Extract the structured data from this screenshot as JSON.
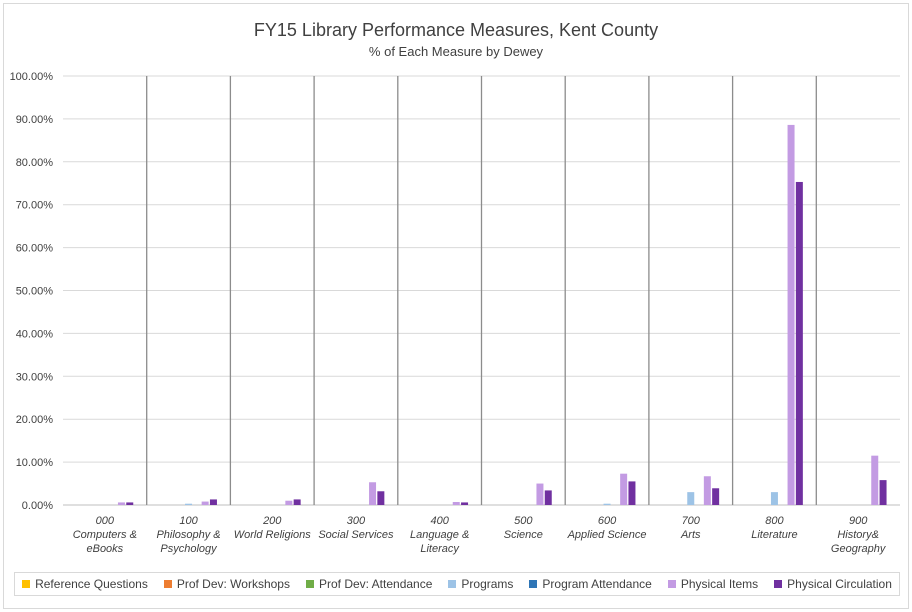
{
  "chart_data": {
    "type": "bar",
    "title": "FY15 Library Performance Measures, Kent County",
    "subtitle": "% of Each Measure by Dewey",
    "ylim": [
      0,
      100
    ],
    "yticks": [
      "0.00%",
      "10.00%",
      "20.00%",
      "30.00%",
      "40.00%",
      "50.00%",
      "60.00%",
      "70.00%",
      "80.00%",
      "90.00%",
      "100.00%"
    ],
    "categories": [
      [
        "000",
        "Computers &",
        "eBooks"
      ],
      [
        "100",
        "Philosophy &",
        "Psychology"
      ],
      [
        "200",
        "World Religions"
      ],
      [
        "300",
        "Social Services"
      ],
      [
        "400",
        "Language &",
        "Literacy"
      ],
      [
        "500",
        "Science"
      ],
      [
        "600",
        "Applied Science"
      ],
      [
        "700",
        "Arts"
      ],
      [
        "800",
        "Literature"
      ],
      [
        "900",
        "History&",
        "Geography"
      ]
    ],
    "series": [
      {
        "name": "Reference Questions",
        "color": "#ffc000",
        "values": [
          0,
          0,
          0,
          0,
          0,
          0,
          0,
          0,
          0,
          0
        ]
      },
      {
        "name": "Prof Dev: Workshops",
        "color": "#ed7d31",
        "values": [
          0,
          0,
          0,
          0,
          0,
          0,
          0,
          0,
          0,
          0
        ]
      },
      {
        "name": "Prof Dev: Attendance",
        "color": "#70ad47",
        "values": [
          0,
          0,
          0,
          0,
          0,
          0,
          0,
          0,
          0,
          0
        ]
      },
      {
        "name": "Programs",
        "color": "#9dc3e6",
        "values": [
          0,
          0.3,
          0,
          0,
          0,
          0,
          0.3,
          3.0,
          3.0,
          0
        ]
      },
      {
        "name": "Program Attendance",
        "color": "#2e75b6",
        "values": [
          0,
          0,
          0,
          0,
          0,
          0,
          0,
          0,
          0,
          0
        ]
      },
      {
        "name": "Physical Items",
        "color": "#c39be3",
        "values": [
          0.6,
          0.8,
          1.0,
          5.3,
          0.7,
          5.0,
          7.3,
          6.7,
          88.6,
          11.5
        ]
      },
      {
        "name": "Physical Circulation",
        "color": "#7030a0",
        "values": [
          0.6,
          1.3,
          1.3,
          3.2,
          0.6,
          3.4,
          5.5,
          3.9,
          75.3,
          5.8
        ]
      }
    ]
  }
}
